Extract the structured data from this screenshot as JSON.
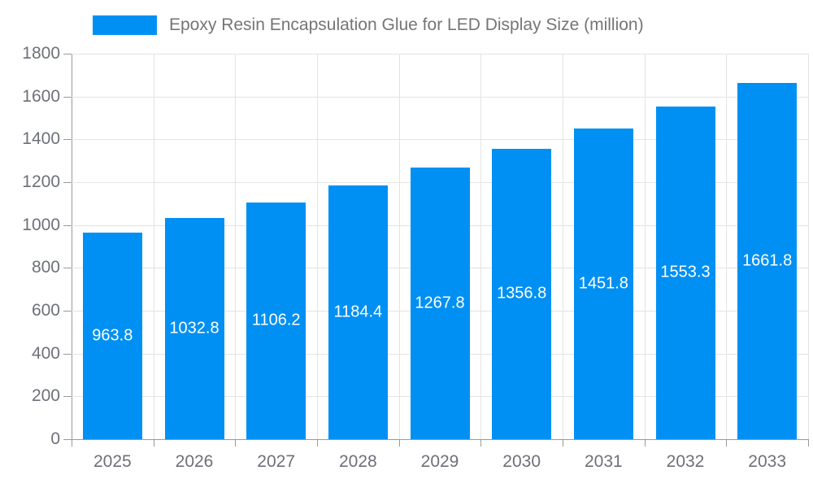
{
  "legend": {
    "label": "Epoxy Resin Encapsulation Glue for LED Display Size (million)"
  },
  "chart_data": {
    "type": "bar",
    "title": "Epoxy Resin Encapsulation Glue for LED Display Size (million)",
    "series_name": "Epoxy Resin Encapsulation Glue for LED Display Size (million)",
    "categories": [
      "2025",
      "2026",
      "2027",
      "2028",
      "2029",
      "2030",
      "2031",
      "2032",
      "2033"
    ],
    "values": [
      963.8,
      1032.8,
      1106.2,
      1184.4,
      1267.8,
      1356.8,
      1451.8,
      1553.3,
      1661.8
    ],
    "value_labels": [
      "963.8",
      "1032.8",
      "1106.2",
      "1184.4",
      "1267.8",
      "1356.8",
      "1451.8",
      "1553.3",
      "1661.8"
    ],
    "xlabel": "",
    "ylabel": "",
    "ylim": [
      0,
      1800
    ],
    "y_ticks": [
      0,
      200,
      400,
      600,
      800,
      1000,
      1200,
      1400,
      1600,
      1800
    ],
    "grid": true,
    "legend_position": "top",
    "bar_color": "#0090F3",
    "value_label_color": "#ffffff",
    "axis_line_color": "#999999",
    "gridline_color": "#e3e3e3",
    "axis_label_color": "#6E7079",
    "legend_text_color": "#757575"
  }
}
